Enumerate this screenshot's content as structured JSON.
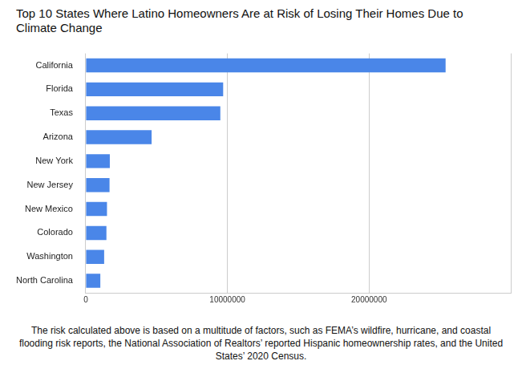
{
  "chart_data": {
    "type": "bar",
    "orientation": "horizontal",
    "title": "Top 10 States Where Latino Homeowners Are at Risk of Losing Their Homes Due to Climate Change",
    "caption": "The risk calculated above is based on a multitude of factors, such as FEMA’s wildfire, hurricane, and coastal flooding risk reports, the National Association of Realtors’ reported Hispanic homeownership rates, and the United States’ 2020 Census.",
    "categories": [
      "California",
      "Florida",
      "Texas",
      "Arizona",
      "New York",
      "New Jersey",
      "New Mexico",
      "Colorado",
      "Washington",
      "North Carolina"
    ],
    "values": [
      25400000,
      9700000,
      9500000,
      4650000,
      1700000,
      1680000,
      1500000,
      1460000,
      1300000,
      1030000
    ],
    "color": "#4a86e8",
    "xlim": [
      0,
      30000000
    ],
    "xticks": [
      0,
      10000000,
      20000000
    ],
    "grid": true
  }
}
